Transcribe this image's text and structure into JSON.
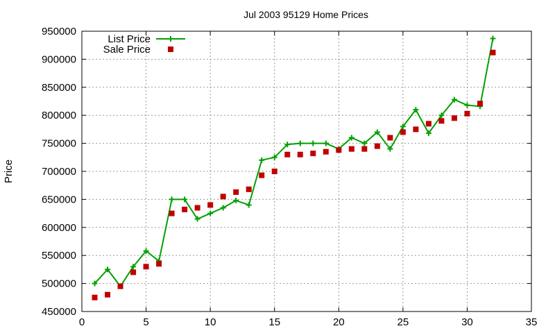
{
  "chart_data": {
    "type": "line",
    "title": "Jul 2003 95129 Home Prices",
    "xlabel": "",
    "ylabel": "Price",
    "xlim": [
      0,
      35
    ],
    "ylim": [
      450000,
      950000
    ],
    "xticks": [
      0,
      5,
      10,
      15,
      20,
      25,
      30,
      35
    ],
    "yticks": [
      450000,
      500000,
      550000,
      600000,
      650000,
      700000,
      750000,
      800000,
      850000,
      900000,
      950000
    ],
    "grid": true,
    "legend_position": "top-left",
    "series": [
      {
        "name": "List Price",
        "style": "line-with-plus-markers",
        "color": "#00a000",
        "x": [
          1,
          2,
          3,
          4,
          5,
          6,
          7,
          8,
          9,
          10,
          11,
          12,
          13,
          14,
          15,
          16,
          17,
          18,
          19,
          20,
          21,
          22,
          23,
          24,
          25,
          26,
          27,
          28,
          29,
          30,
          31,
          32
        ],
        "y": [
          500000,
          525000,
          495000,
          530000,
          558000,
          540000,
          650000,
          650000,
          615000,
          625000,
          635000,
          648000,
          640000,
          720000,
          725000,
          748000,
          750000,
          750000,
          750000,
          740000,
          760000,
          750000,
          770000,
          740000,
          780000,
          810000,
          768000,
          800000,
          828000,
          818000,
          816000,
          937000
        ]
      },
      {
        "name": "Sale Price",
        "style": "square-markers",
        "color": "#c00000",
        "x": [
          1,
          2,
          3,
          4,
          5,
          6,
          7,
          8,
          9,
          10,
          11,
          12,
          13,
          14,
          15,
          16,
          17,
          18,
          19,
          20,
          21,
          22,
          23,
          24,
          25,
          26,
          27,
          28,
          29,
          30,
          31,
          32
        ],
        "y": [
          475000,
          480000,
          495000,
          520000,
          530000,
          535000,
          625000,
          632000,
          635000,
          640000,
          655000,
          663000,
          668000,
          693000,
          700000,
          730000,
          730000,
          732000,
          735000,
          738000,
          740000,
          740000,
          745000,
          760000,
          770000,
          775000,
          785000,
          790000,
          795000,
          803000,
          821000,
          912000
        ]
      }
    ]
  }
}
